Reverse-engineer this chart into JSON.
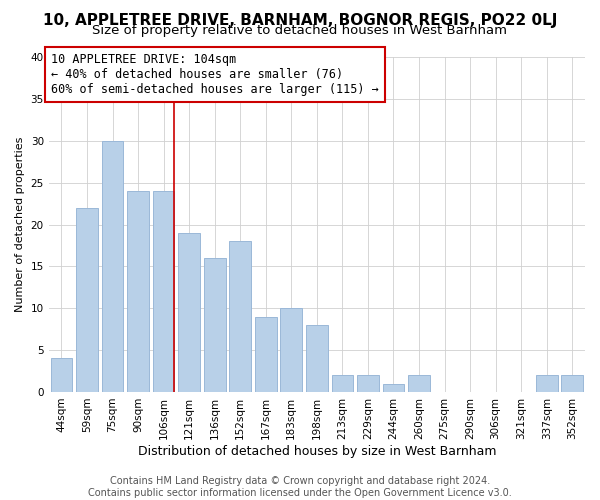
{
  "title": "10, APPLETREE DRIVE, BARNHAM, BOGNOR REGIS, PO22 0LJ",
  "subtitle": "Size of property relative to detached houses in West Barnham",
  "xlabel": "Distribution of detached houses by size in West Barnham",
  "ylabel": "Number of detached properties",
  "bar_color": "#b8d0e8",
  "bar_edge_color": "#9ab8d8",
  "categories": [
    "44sqm",
    "59sqm",
    "75sqm",
    "90sqm",
    "106sqm",
    "121sqm",
    "136sqm",
    "152sqm",
    "167sqm",
    "183sqm",
    "198sqm",
    "213sqm",
    "229sqm",
    "244sqm",
    "260sqm",
    "275sqm",
    "290sqm",
    "306sqm",
    "321sqm",
    "337sqm",
    "352sqm"
  ],
  "values": [
    4,
    22,
    30,
    24,
    24,
    19,
    16,
    18,
    9,
    10,
    8,
    2,
    2,
    1,
    2,
    0,
    0,
    0,
    0,
    2,
    2
  ],
  "highlight_index": 4,
  "highlight_line_color": "#cc0000",
  "ylim": [
    0,
    40
  ],
  "yticks": [
    0,
    5,
    10,
    15,
    20,
    25,
    30,
    35,
    40
  ],
  "annotation_title": "10 APPLETREE DRIVE: 104sqm",
  "annotation_line1": "← 40% of detached houses are smaller (76)",
  "annotation_line2": "60% of semi-detached houses are larger (115) →",
  "annotation_box_color": "#ffffff",
  "annotation_box_edge": "#cc0000",
  "footer_line1": "Contains HM Land Registry data © Crown copyright and database right 2024.",
  "footer_line2": "Contains public sector information licensed under the Open Government Licence v3.0.",
  "background_color": "#ffffff",
  "grid_color": "#d0d0d0",
  "title_fontsize": 11,
  "subtitle_fontsize": 9.5,
  "xlabel_fontsize": 9,
  "ylabel_fontsize": 8,
  "tick_fontsize": 7.5,
  "annotation_fontsize": 8.5,
  "footer_fontsize": 7
}
